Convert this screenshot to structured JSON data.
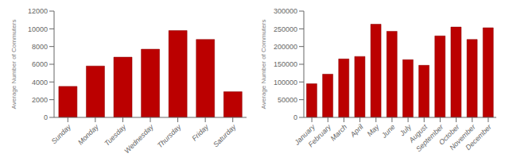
{
  "chart_data": [
    {
      "type": "bar",
      "categories": [
        "Sunday",
        "Monday",
        "Tuesday",
        "Wednesday",
        "Thursday",
        "Friday",
        "Saturday"
      ],
      "values": [
        3500,
        5800,
        6800,
        7700,
        9800,
        8800,
        2900
      ],
      "color": "#BB0000",
      "ylabel": "Average Number of Commuters",
      "ylim": [
        0,
        12000
      ],
      "yticks": [
        0,
        2000,
        4000,
        6000,
        8000,
        10000,
        12000
      ]
    },
    {
      "type": "bar",
      "categories": [
        "January",
        "February",
        "March",
        "April",
        "May",
        "June",
        "July",
        "August",
        "September",
        "October",
        "November",
        "December"
      ],
      "values": [
        95000,
        122000,
        165000,
        172000,
        263000,
        243000,
        163000,
        147000,
        230000,
        255000,
        220000,
        253000
      ],
      "color": "#BB0000",
      "ylabel": "Average Number of Commuters",
      "ylim": [
        0,
        300000
      ],
      "yticks": [
        0,
        50000,
        100000,
        150000,
        200000,
        250000,
        300000
      ]
    }
  ]
}
